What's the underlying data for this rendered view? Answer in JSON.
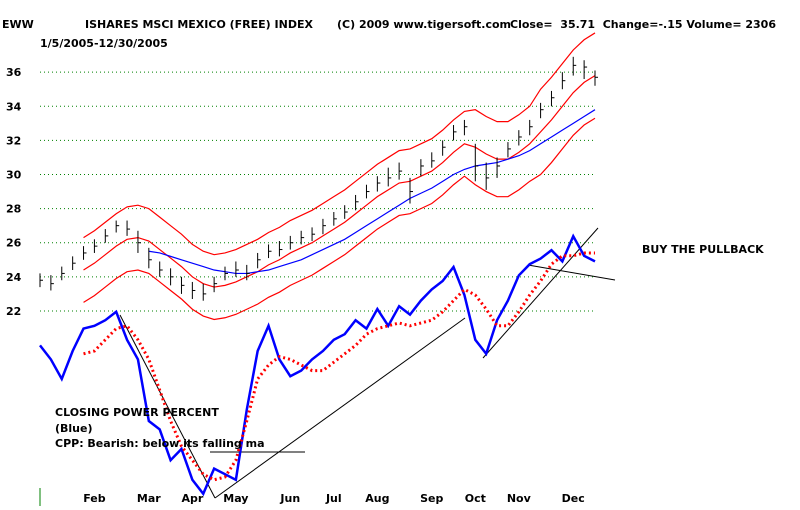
{
  "chart_data": {
    "type": "stock",
    "ticker": "EWW",
    "title": "ISHARES MSCI MEXICO (FREE) INDEX",
    "source": "(C) 2009 www.tigersoft.com",
    "quote": "Close=  35.71  Change=-.15 Volume= 2306",
    "subtitle": "1/5/2005-12/30/2005",
    "categories": [
      null,
      null,
      null,
      null,
      null,
      "Feb",
      null,
      null,
      null,
      null,
      "Mar",
      null,
      null,
      null,
      "Apr",
      null,
      null,
      null,
      "May",
      null,
      null,
      null,
      null,
      "Jun",
      null,
      null,
      null,
      "Jul",
      null,
      null,
      null,
      "Aug",
      null,
      null,
      null,
      null,
      "Sep",
      null,
      null,
      null,
      "Oct",
      null,
      null,
      null,
      "Nov",
      null,
      null,
      null,
      null,
      "Dec",
      null,
      null
    ],
    "high": [
      24.2,
      24.1,
      24.6,
      25.2,
      25.8,
      26.2,
      26.8,
      27.3,
      27.3,
      26.7,
      25.7,
      24.9,
      24.5,
      24.0,
      23.7,
      23.6,
      24.0,
      24.6,
      24.9,
      24.7,
      25.4,
      25.9,
      26.1,
      26.4,
      26.7,
      26.9,
      27.4,
      27.8,
      28.2,
      28.8,
      29.4,
      29.9,
      30.4,
      30.7,
      29.8,
      30.9,
      31.3,
      32.0,
      32.9,
      33.2,
      31.8,
      30.7,
      31.0,
      31.9,
      32.6,
      33.2,
      34.2,
      34.9,
      36.0,
      36.9,
      36.7,
      36.1
    ],
    "low": [
      23.4,
      23.2,
      23.8,
      24.4,
      25.0,
      25.4,
      26.0,
      26.6,
      26.4,
      25.4,
      24.5,
      24.0,
      23.5,
      23.0,
      22.7,
      22.6,
      23.1,
      23.8,
      24.0,
      23.8,
      24.5,
      25.1,
      25.2,
      25.6,
      25.9,
      26.1,
      26.5,
      27.0,
      27.4,
      27.9,
      28.6,
      29.0,
      29.3,
      29.7,
      28.3,
      29.9,
      30.4,
      31.1,
      32.0,
      32.3,
      29.6,
      29.1,
      29.8,
      31.0,
      31.7,
      32.3,
      33.3,
      34.0,
      35.0,
      35.8,
      35.6,
      35.2
    ],
    "close": [
      23.8,
      23.6,
      24.2,
      24.8,
      25.4,
      25.8,
      26.4,
      27.0,
      26.8,
      26.0,
      25.0,
      24.4,
      24.0,
      23.5,
      23.2,
      23.0,
      23.6,
      24.2,
      24.4,
      24.2,
      25.0,
      25.5,
      25.6,
      26.0,
      26.3,
      26.5,
      27.0,
      27.4,
      27.8,
      28.4,
      29.0,
      29.5,
      29.8,
      30.2,
      29.0,
      30.5,
      30.8,
      31.6,
      32.5,
      32.8,
      30.5,
      29.8,
      30.5,
      31.5,
      32.2,
      32.8,
      33.8,
      34.5,
      35.5,
      36.4,
      36.3,
      35.7
    ],
    "color": "#000000",
    "series": [
      {
        "color": "#ff0000",
        "values": [
          null,
          null,
          null,
          null,
          26.3,
          26.7,
          27.2,
          27.7,
          28.1,
          28.2,
          28.0,
          27.5,
          27.0,
          26.5,
          25.9,
          25.5,
          25.3,
          25.4,
          25.6,
          25.9,
          26.2,
          26.6,
          26.9,
          27.3,
          27.6,
          27.9,
          28.3,
          28.7,
          29.1,
          29.6,
          30.1,
          30.6,
          31.0,
          31.4,
          31.5,
          31.8,
          32.1,
          32.6,
          33.2,
          33.7,
          33.8,
          33.4,
          33.1,
          33.1,
          33.5,
          34.0,
          35.0,
          35.7,
          36.5,
          37.3,
          37.9,
          38.3
        ]
      },
      {
        "color": "#ff0000",
        "values": [
          null,
          null,
          null,
          null,
          24.4,
          24.8,
          25.3,
          25.8,
          26.2,
          26.3,
          26.1,
          25.6,
          25.1,
          24.6,
          24.0,
          23.6,
          23.4,
          23.5,
          23.7,
          24.0,
          24.3,
          24.7,
          25.0,
          25.4,
          25.7,
          26.0,
          26.4,
          26.8,
          27.2,
          27.7,
          28.2,
          28.7,
          29.1,
          29.5,
          29.6,
          29.9,
          30.2,
          30.7,
          31.3,
          31.8,
          31.6,
          31.2,
          30.9,
          30.9,
          31.3,
          31.8,
          32.5,
          33.2,
          34.0,
          34.8,
          35.4,
          35.8
        ]
      },
      {
        "color": "#0000ff",
        "values": [
          null,
          null,
          null,
          null,
          null,
          null,
          null,
          null,
          null,
          null,
          25.5,
          25.4,
          25.2,
          25.0,
          24.8,
          24.6,
          24.4,
          24.3,
          24.2,
          24.2,
          24.3,
          24.4,
          24.6,
          24.8,
          25.0,
          25.3,
          25.6,
          25.9,
          26.2,
          26.6,
          27.0,
          27.4,
          27.8,
          28.2,
          28.6,
          28.9,
          29.2,
          29.6,
          30.0,
          30.3,
          30.5,
          30.6,
          30.7,
          30.9,
          31.1,
          31.4,
          31.8,
          32.2,
          32.6,
          33.0,
          33.4,
          33.8
        ]
      },
      {
        "color": "#ff0000",
        "values": [
          null,
          null,
          null,
          null,
          22.5,
          22.9,
          23.4,
          23.9,
          24.3,
          24.4,
          24.2,
          23.7,
          23.2,
          22.7,
          22.1,
          21.7,
          21.5,
          21.6,
          21.8,
          22.1,
          22.4,
          22.8,
          23.1,
          23.5,
          23.8,
          24.1,
          24.5,
          24.9,
          25.3,
          25.8,
          26.3,
          26.8,
          27.2,
          27.6,
          27.7,
          28.0,
          28.3,
          28.8,
          29.4,
          29.9,
          29.4,
          29.0,
          28.7,
          28.7,
          29.1,
          29.6,
          30.0,
          30.7,
          31.5,
          32.3,
          32.9,
          33.3
        ]
      },
      {
        "color": "#0000ff",
        "axis": "y2",
        "values": [
          57,
          52,
          45,
          55,
          63,
          64,
          66,
          69,
          59,
          52,
          30,
          27,
          16,
          20,
          9,
          4,
          13,
          11,
          9,
          34,
          55,
          64,
          52,
          46,
          48,
          52,
          55,
          59,
          61,
          66,
          63,
          70,
          64,
          71,
          68,
          73,
          77,
          80,
          85,
          75,
          59,
          54,
          66,
          73,
          82,
          86,
          88,
          91,
          87,
          96,
          89,
          87
        ]
      },
      {
        "color": "#ff0000",
        "axis": "y2",
        "dashed": true,
        "values": [
          null,
          null,
          null,
          null,
          54,
          55,
          59,
          63,
          64,
          59,
          52,
          41,
          30,
          21,
          16,
          11,
          9,
          10,
          16,
          30,
          45,
          50,
          53,
          52,
          50,
          48,
          48,
          51,
          54,
          57,
          61,
          63,
          64,
          65,
          64,
          65,
          66,
          69,
          73,
          77,
          75,
          70,
          64,
          64,
          69,
          75,
          80,
          86,
          89,
          89,
          90,
          90
        ]
      }
    ],
    "ylim": [
      21,
      39
    ],
    "yticks": [
      22,
      24,
      26,
      28,
      30,
      32,
      34,
      36
    ],
    "y2lim": [
      0,
      100
    ],
    "grid": true,
    "grid_color": "#008000",
    "annotations": [
      "BUY THE PULLBACK",
      "CLOSING POWER PERCENT",
      "(Blue)",
      "CPP: Bearish: below its falling ma"
    ]
  }
}
